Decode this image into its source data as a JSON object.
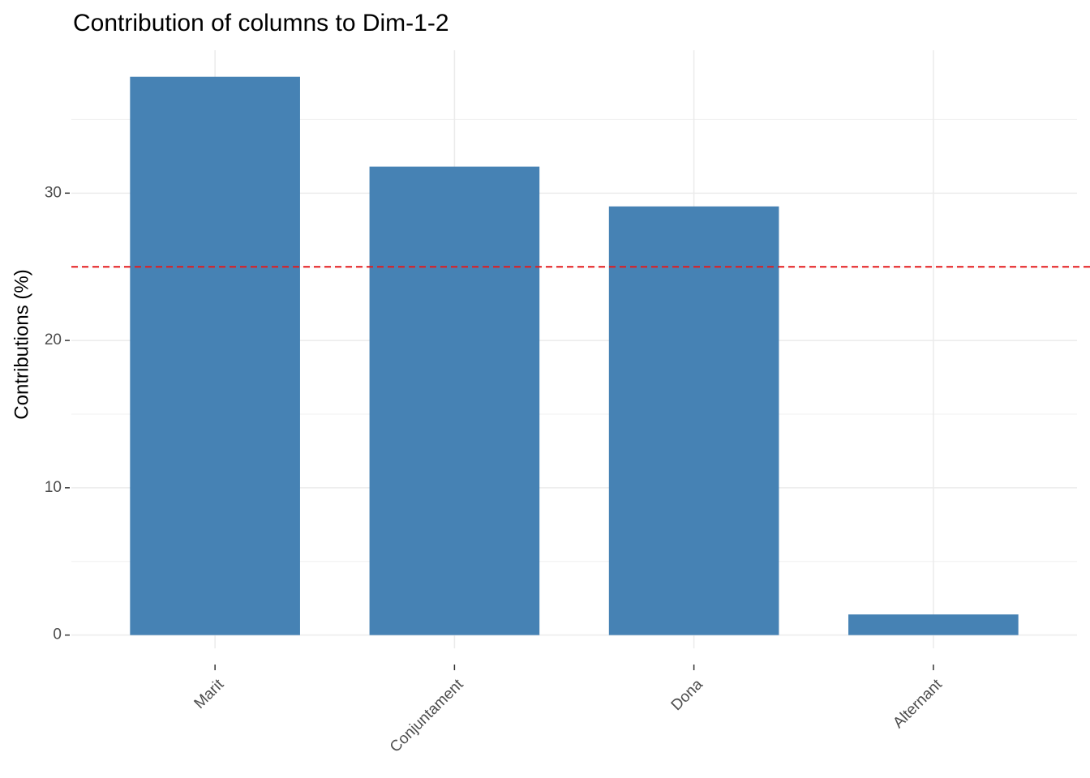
{
  "chart_data": {
    "type": "bar",
    "title": "Contribution of columns to Dim-1-2",
    "ylabel": "Contributions (%)",
    "categories": [
      "Marit",
      "Conjuntament",
      "Dona",
      "Alternant"
    ],
    "values": [
      37.9,
      31.8,
      29.1,
      1.4
    ],
    "color": "#4682b4",
    "ylim": [
      -0.9,
      39.7
    ],
    "yticks": [
      0,
      10,
      20,
      30
    ],
    "minor_yticks": [
      5,
      15,
      25,
      35
    ],
    "grid": true,
    "hline": 25,
    "hline_color": "#e41a1c"
  }
}
